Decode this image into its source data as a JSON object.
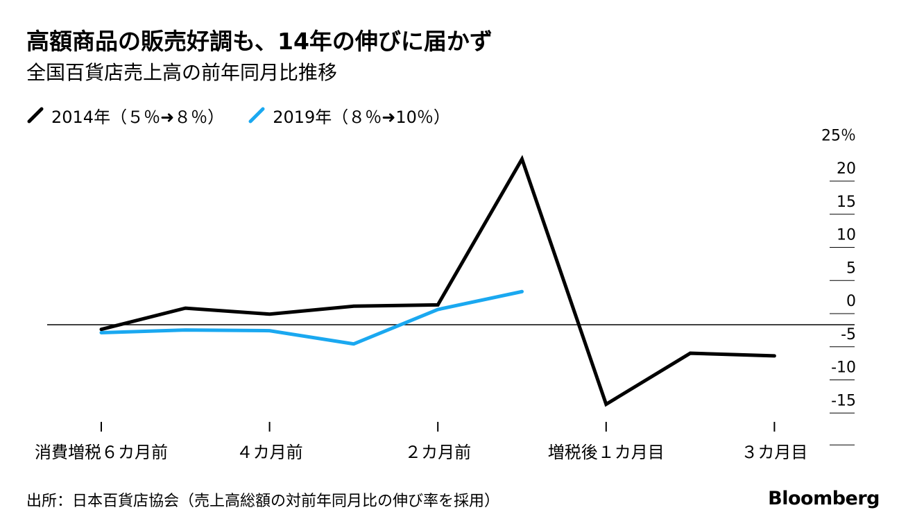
{
  "title": "高額商品の販売好調も、14年の伸びに届かず",
  "subtitle": "全国百貨店売上高の前年同月比推移",
  "legend": {
    "series_2014": "2014年（５％➜８％）",
    "series_2019": "2019年（８％➜10％）"
  },
  "source": "出所：日本百貨店協会（売上高総額の対前年同月比の伸び率を採用）",
  "brand": "Bloomberg",
  "colors": {
    "series_2014": "#000000",
    "series_2019": "#1aa8f0"
  },
  "chart_data": {
    "type": "line",
    "title": "高額商品の販売好調も、14年の伸びに届かず",
    "subtitle": "全国百貨店売上高の前年同月比推移",
    "xlabel": "",
    "ylabel": "",
    "x": [
      -6,
      -5,
      -4,
      -3,
      -2,
      -1,
      1,
      2,
      3
    ],
    "x_tick_values": [
      -6,
      -4,
      -2,
      1,
      3
    ],
    "x_tick_labels": [
      "消費増税６カ月前",
      "４カ月前",
      "２カ月前",
      "増税後１カ月目",
      "３カ月目"
    ],
    "y_tick_values": [
      25,
      20,
      15,
      10,
      5,
      0,
      -5,
      -10,
      -15
    ],
    "y_tick_labels": [
      "25％",
      "20",
      "15",
      "10",
      "5",
      "0",
      "-5",
      "-10",
      "-15"
    ],
    "ylim": [
      -15,
      25
    ],
    "grid": false,
    "legend_position": "top-left",
    "series": [
      {
        "name": "2014年（５％➜８％）",
        "values": [
          -0.7,
          2.5,
          1.6,
          2.8,
          3.0,
          25.0,
          -12.0,
          -4.3,
          -4.7
        ]
      },
      {
        "name": "2019年（８％➜10％）",
        "values": [
          -1.2,
          -0.8,
          -0.9,
          -2.9,
          2.3,
          5.0,
          null,
          null,
          null
        ]
      }
    ]
  }
}
